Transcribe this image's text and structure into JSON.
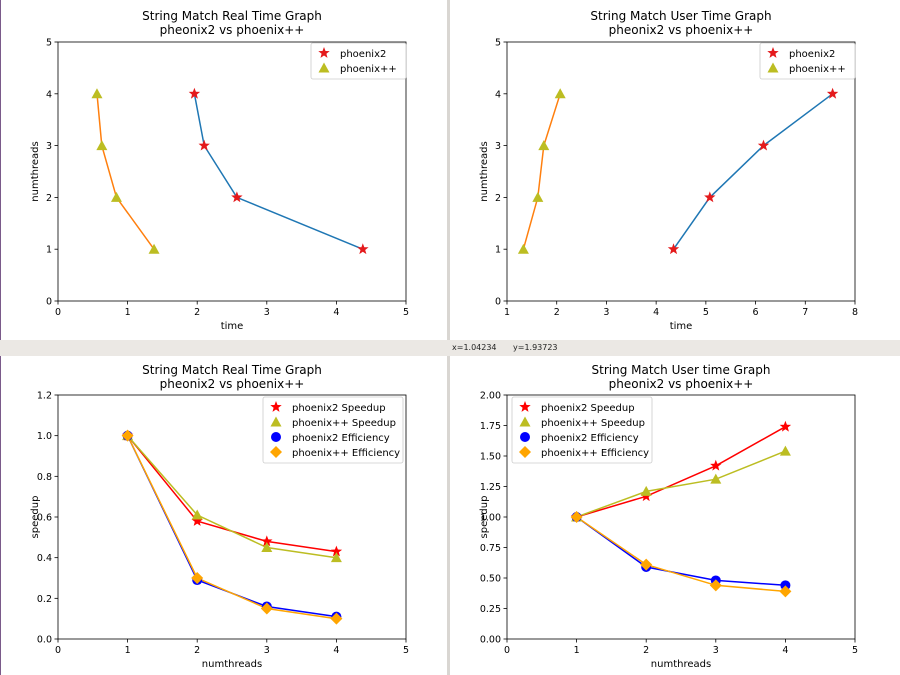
{
  "status_bar": {
    "x_readout": "x=1.04234",
    "y_readout": "y=1.93723"
  },
  "chart_data": [
    {
      "type": "line",
      "title": "String Match Real Time Graph",
      "subtitle": "pheonix2 vs phoenix++",
      "xlabel": "time",
      "ylabel": "numthreads",
      "xlim": [
        0,
        5
      ],
      "ylim": [
        0,
        5
      ],
      "xticks": [
        "0",
        "1",
        "2",
        "3",
        "4",
        "5"
      ],
      "yticks": [
        "0",
        "1",
        "2",
        "3",
        "4",
        "5"
      ],
      "legend_position": "top-right",
      "series": [
        {
          "name": "phoenix2",
          "marker": "star",
          "marker_color": "#e41a1c",
          "line_color": "#1f77b4",
          "x": [
            4.38,
            2.57,
            2.1,
            1.96
          ],
          "y": [
            1,
            2,
            3,
            4
          ]
        },
        {
          "name": "phoenix++",
          "marker": "triangle",
          "marker_color": "#bcbd22",
          "line_color": "#ff7f0e",
          "x": [
            1.38,
            0.84,
            0.63,
            0.56
          ],
          "y": [
            1,
            2,
            3,
            4
          ]
        }
      ]
    },
    {
      "type": "line",
      "title": "String Match User Time Graph",
      "subtitle": "pheonix2 vs phoenix++",
      "xlabel": "time",
      "ylabel": "numthreads",
      "xlim": [
        1,
        8
      ],
      "ylim": [
        0,
        5
      ],
      "xticks": [
        "1",
        "2",
        "3",
        "4",
        "5",
        "6",
        "7",
        "8"
      ],
      "yticks": [
        "0",
        "1",
        "2",
        "3",
        "4",
        "5"
      ],
      "legend_position": "top-right",
      "series": [
        {
          "name": "phoenix2",
          "marker": "star",
          "marker_color": "#e41a1c",
          "line_color": "#1f77b4",
          "x": [
            4.35,
            5.08,
            6.16,
            7.55
          ],
          "y": [
            1,
            2,
            3,
            4
          ]
        },
        {
          "name": "phoenix++",
          "marker": "triangle",
          "marker_color": "#bcbd22",
          "line_color": "#ff7f0e",
          "x": [
            1.33,
            1.62,
            1.74,
            2.07
          ],
          "y": [
            1,
            2,
            3,
            4
          ]
        }
      ]
    },
    {
      "type": "line",
      "title": "String Match Real Time Graph",
      "subtitle": "pheonix2 vs phoenix++",
      "xlabel": "numthreads",
      "ylabel": "speedup",
      "xlim": [
        0,
        5
      ],
      "ylim": [
        0,
        1.2
      ],
      "xticks": [
        "0",
        "1",
        "2",
        "3",
        "4",
        "5"
      ],
      "yticks": [
        "0.0",
        "0.2",
        "0.4",
        "0.6",
        "0.8",
        "1.0",
        "1.2"
      ],
      "legend_position": "top-right",
      "series": [
        {
          "name": "phoenix2 Speedup",
          "marker": "star",
          "marker_color": "#ff0000",
          "line_color": "#ff0000",
          "x": [
            1,
            2,
            3,
            4
          ],
          "y": [
            1.0,
            0.58,
            0.48,
            0.43
          ]
        },
        {
          "name": "phoenix++ Speedup",
          "marker": "triangle",
          "marker_color": "#bcbd22",
          "line_color": "#bcbd22",
          "x": [
            1,
            2,
            3,
            4
          ],
          "y": [
            1.0,
            0.61,
            0.45,
            0.4
          ]
        },
        {
          "name": "phoenix2 Efficiency",
          "marker": "circle",
          "marker_color": "#0000ff",
          "line_color": "#0000ff",
          "x": [
            1,
            2,
            3,
            4
          ],
          "y": [
            1.0,
            0.29,
            0.16,
            0.11
          ]
        },
        {
          "name": "phoenix++ Efficiency",
          "marker": "diamond",
          "marker_color": "#ffa500",
          "line_color": "#ffa500",
          "x": [
            1,
            2,
            3,
            4
          ],
          "y": [
            1.0,
            0.3,
            0.15,
            0.1
          ]
        }
      ]
    },
    {
      "type": "line",
      "title": "String Match User time Graph",
      "subtitle": "pheonix2 vs phoenix++",
      "xlabel": "numthreads",
      "ylabel": "speedup",
      "xlim": [
        0,
        5
      ],
      "ylim": [
        0,
        2.0
      ],
      "xticks": [
        "0",
        "1",
        "2",
        "3",
        "4",
        "5"
      ],
      "yticks": [
        "0.00",
        "0.25",
        "0.50",
        "0.75",
        "1.00",
        "1.25",
        "1.50",
        "1.75",
        "2.00"
      ],
      "legend_position": "top-left",
      "series": [
        {
          "name": "phoenix2 Speedup",
          "marker": "star",
          "marker_color": "#ff0000",
          "line_color": "#ff0000",
          "x": [
            1,
            2,
            3,
            4
          ],
          "y": [
            1.0,
            1.17,
            1.42,
            1.74
          ]
        },
        {
          "name": "phoenix++ Speedup",
          "marker": "triangle",
          "marker_color": "#bcbd22",
          "line_color": "#bcbd22",
          "x": [
            1,
            2,
            3,
            4
          ],
          "y": [
            1.0,
            1.21,
            1.31,
            1.54
          ]
        },
        {
          "name": "phoenix2 Efficiency",
          "marker": "circle",
          "marker_color": "#0000ff",
          "line_color": "#0000ff",
          "x": [
            1,
            2,
            3,
            4
          ],
          "y": [
            1.0,
            0.59,
            0.48,
            0.44
          ]
        },
        {
          "name": "phoenix++ Efficiency",
          "marker": "diamond",
          "marker_color": "#ffa500",
          "line_color": "#ffa500",
          "x": [
            1,
            2,
            3,
            4
          ],
          "y": [
            1.0,
            0.61,
            0.44,
            0.39
          ]
        }
      ]
    }
  ]
}
